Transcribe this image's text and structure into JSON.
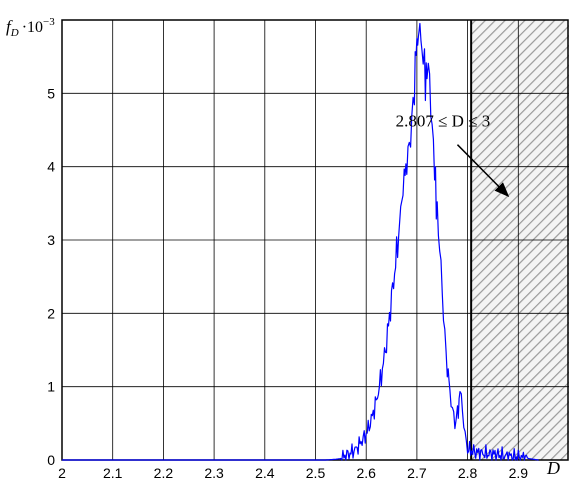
{
  "chart_data": {
    "type": "line",
    "ylabel_parts": {
      "main": "f",
      "sub": "D",
      "mult": "·10",
      "exp": "−3"
    },
    "xlabel": "D",
    "xlim": [
      2,
      3
    ],
    "ylim": [
      0,
      6
    ],
    "x_ticks": [
      "2",
      "2.1",
      "2.2",
      "2.3",
      "2.4",
      "2.5",
      "2.6",
      "2.7",
      "2.8",
      "2.9"
    ],
    "y_ticks": [
      "0",
      "1",
      "2",
      "3",
      "4",
      "5"
    ],
    "grid": true,
    "series_color": "#0000ff",
    "hatch_region": {
      "x_start": 2.807,
      "x_end": 3
    },
    "annotation": {
      "text": "2.807 ≤ D ≤ 3",
      "arrow_from": [
        2.78,
        4.3
      ],
      "arrow_to": [
        2.88,
        3.6
      ]
    },
    "series": [
      {
        "x": [
          2.0,
          2.5,
          2.52,
          2.54,
          2.55,
          2.56,
          2.57,
          2.58,
          2.59,
          2.6,
          2.61,
          2.62,
          2.63,
          2.64,
          2.65,
          2.66,
          2.67,
          2.675,
          2.68,
          2.685,
          2.69,
          2.695,
          2.7,
          2.703,
          2.706,
          2.71,
          2.715,
          2.72,
          2.725,
          2.73,
          2.735,
          2.74,
          2.745,
          2.75,
          2.755,
          2.76,
          2.765,
          2.77,
          2.775,
          2.78,
          2.785,
          2.79,
          2.795,
          2.8,
          2.81,
          2.82,
          2.83,
          2.84,
          2.85,
          2.86,
          2.87,
          2.88,
          2.89,
          2.9,
          2.91,
          2.92,
          2.93,
          2.94
        ],
        "y": [
          0.0,
          0.0,
          0.0,
          0.01,
          0.02,
          0.06,
          0.1,
          0.15,
          0.25,
          0.35,
          0.55,
          0.8,
          1.15,
          1.6,
          2.2,
          2.8,
          3.5,
          3.8,
          4.1,
          4.4,
          4.8,
          5.2,
          5.7,
          6.0,
          5.7,
          5.6,
          5.3,
          5.2,
          5.0,
          4.4,
          3.9,
          3.4,
          3.0,
          2.4,
          1.8,
          1.3,
          0.95,
          0.7,
          0.45,
          0.6,
          0.9,
          0.6,
          0.3,
          0.15,
          0.12,
          0.1,
          0.09,
          0.08,
          0.08,
          0.07,
          0.06,
          0.05,
          0.05,
          0.04,
          0.03,
          0.02,
          0.01,
          0.0
        ]
      }
    ]
  }
}
